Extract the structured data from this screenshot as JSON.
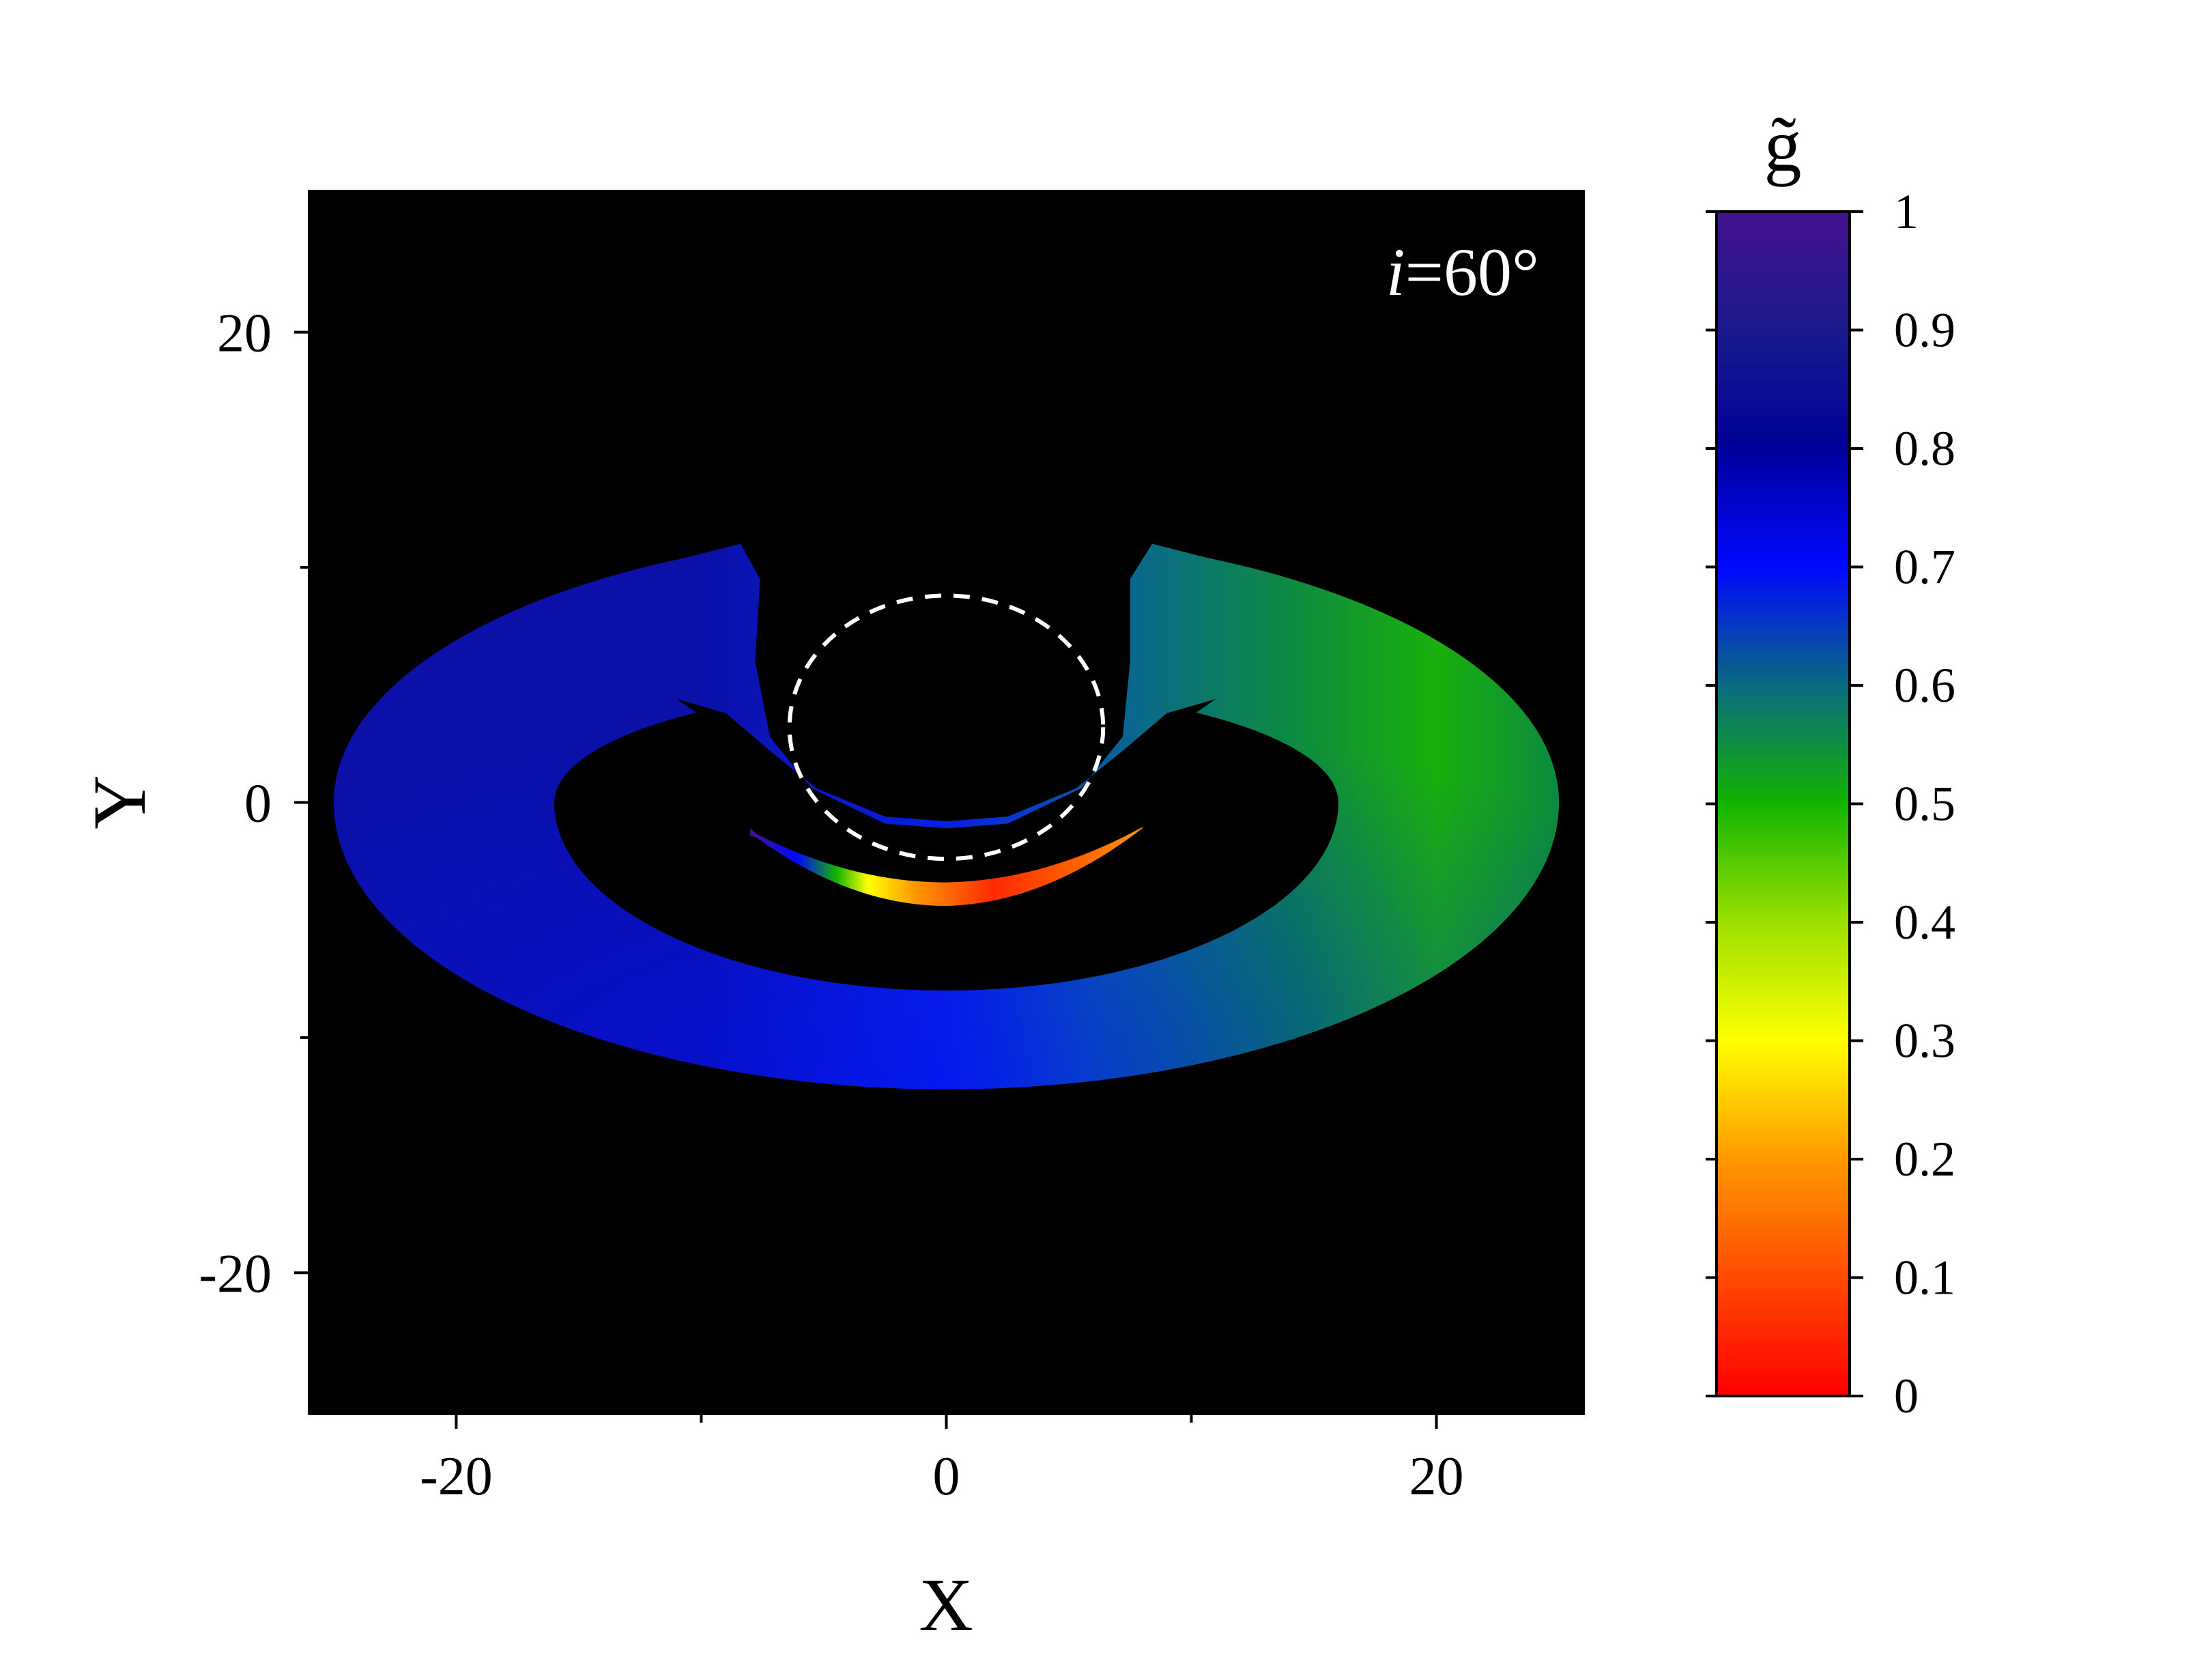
{
  "chart_data": {
    "type": "heatmap",
    "title": "",
    "xlabel": "X",
    "ylabel": "Y",
    "xlim": [
      -26,
      26
    ],
    "ylim": [
      -26,
      26
    ],
    "x_ticks": [
      {
        "value": -20,
        "label": "-20"
      },
      {
        "value": 0,
        "label": "0"
      },
      {
        "value": 20,
        "label": "20"
      }
    ],
    "x_minor_ticks": [
      -10,
      10
    ],
    "y_ticks": [
      {
        "value": 20,
        "label": "20"
      },
      {
        "value": 0,
        "label": "0"
      },
      {
        "value": -20,
        "label": "-20"
      }
    ],
    "y_minor_ticks": [
      10,
      -10
    ],
    "annotation": {
      "symbol": "i",
      "text": "=60°"
    },
    "background_color": "#000000",
    "colorbar": {
      "label": "g̃",
      "range": [
        0,
        1
      ],
      "ticks": [
        {
          "value": 1,
          "label": "1"
        },
        {
          "value": 0.9,
          "label": "0.9"
        },
        {
          "value": 0.8,
          "label": "0.8"
        },
        {
          "value": 0.7,
          "label": "0.7"
        },
        {
          "value": 0.6,
          "label": "0.6"
        },
        {
          "value": 0.5,
          "label": "0.5"
        },
        {
          "value": 0.4,
          "label": "0.4"
        },
        {
          "value": 0.3,
          "label": "0.3"
        },
        {
          "value": 0.2,
          "label": "0.2"
        },
        {
          "value": 0.1,
          "label": "0.1"
        },
        {
          "value": 0,
          "label": "0"
        }
      ],
      "colors": [
        {
          "value": 0.0,
          "color": "#ff0000"
        },
        {
          "value": 0.1,
          "color": "#ff4a00"
        },
        {
          "value": 0.2,
          "color": "#ff9800"
        },
        {
          "value": 0.3,
          "color": "#ffff00"
        },
        {
          "value": 0.4,
          "color": "#9be000"
        },
        {
          "value": 0.5,
          "color": "#12b400"
        },
        {
          "value": 0.6,
          "color": "#0a6a80"
        },
        {
          "value": 0.7,
          "color": "#0008ff"
        },
        {
          "value": 0.8,
          "color": "#00009a"
        },
        {
          "value": 0.9,
          "color": "#1a1a8c"
        },
        {
          "value": 1.0,
          "color": "#44128f"
        }
      ]
    },
    "regions": [
      {
        "name": "primary-disk-image",
        "kind": "torus",
        "center": [
          0,
          0
        ],
        "outer_radius_x": 25,
        "outer_radius_y_top": 11.5,
        "outer_radius_y_bottom": 12.2,
        "inner_radius_x": 16,
        "inner_radius_y": 8,
        "gap_x_left": -7.5,
        "gap_x_right": 7.5,
        "value_samples": [
          {
            "x": -18,
            "y": 0,
            "g": 0.85
          },
          {
            "x": 0,
            "y": -11,
            "g": 0.72
          },
          {
            "x": 18,
            "y": 0,
            "g": 0.5
          },
          {
            "x": 12,
            "y": 6,
            "g": 0.55
          },
          {
            "x": -10,
            "y": 8,
            "g": 0.75
          }
        ]
      },
      {
        "name": "secondary-arc-image",
        "kind": "arc",
        "x_range": [
          -8,
          8
        ],
        "y_range": [
          -4.4,
          -1
        ],
        "value_samples": [
          {
            "x": -7.5,
            "y": -1.5,
            "g": 0.95
          },
          {
            "x": -5,
            "y": -2.8,
            "g": 0.5
          },
          {
            "x": 0,
            "y": -3.8,
            "g": 0.15
          },
          {
            "x": 6,
            "y": -2.5,
            "g": 0.2
          }
        ]
      },
      {
        "name": "shadow-boundary",
        "kind": "dashed-circle",
        "center": [
          0,
          3.2
        ],
        "radius_x": 6.4,
        "radius_y": 5.6,
        "color": "#ffffff"
      }
    ]
  }
}
